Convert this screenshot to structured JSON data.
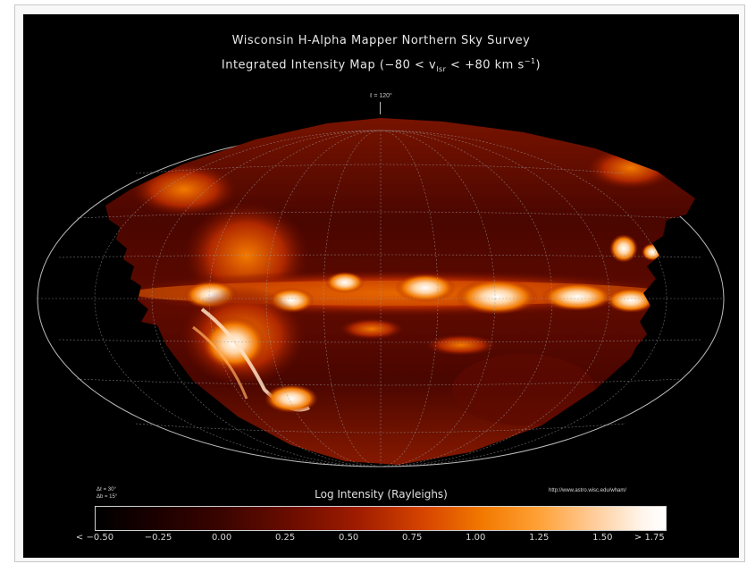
{
  "map": {
    "title_line1": "Wisconsin H-Alpha Mapper Northern Sky Survey",
    "title_line2_prefix": "Integrated Intensity Map (−80 < v",
    "title_line2_sub": "lsr",
    "title_line2_mid": " < +80 km s",
    "title_line2_sup": "−1",
    "title_line2_suffix": ")",
    "center_label": "ℓ = 120°",
    "grid_labels": [
      "Δℓ = 30°",
      "Δb = 15°"
    ],
    "url": "http://www.astro.wisc.edu/wham/",
    "colorbar_title": "Log Intensity (Rayleighs)",
    "colorbar_ticks": [
      "< −0.50",
      "−0.25",
      "0.00",
      "0.25",
      "0.50",
      "0.75",
      "1.00",
      "1.25",
      "1.50",
      "> 1.75"
    ],
    "colors": {
      "background": "#000000",
      "dim": "#3a0400",
      "mid": "#a01c00",
      "bright": "#f27a00",
      "hot": "#ffffff"
    }
  }
}
